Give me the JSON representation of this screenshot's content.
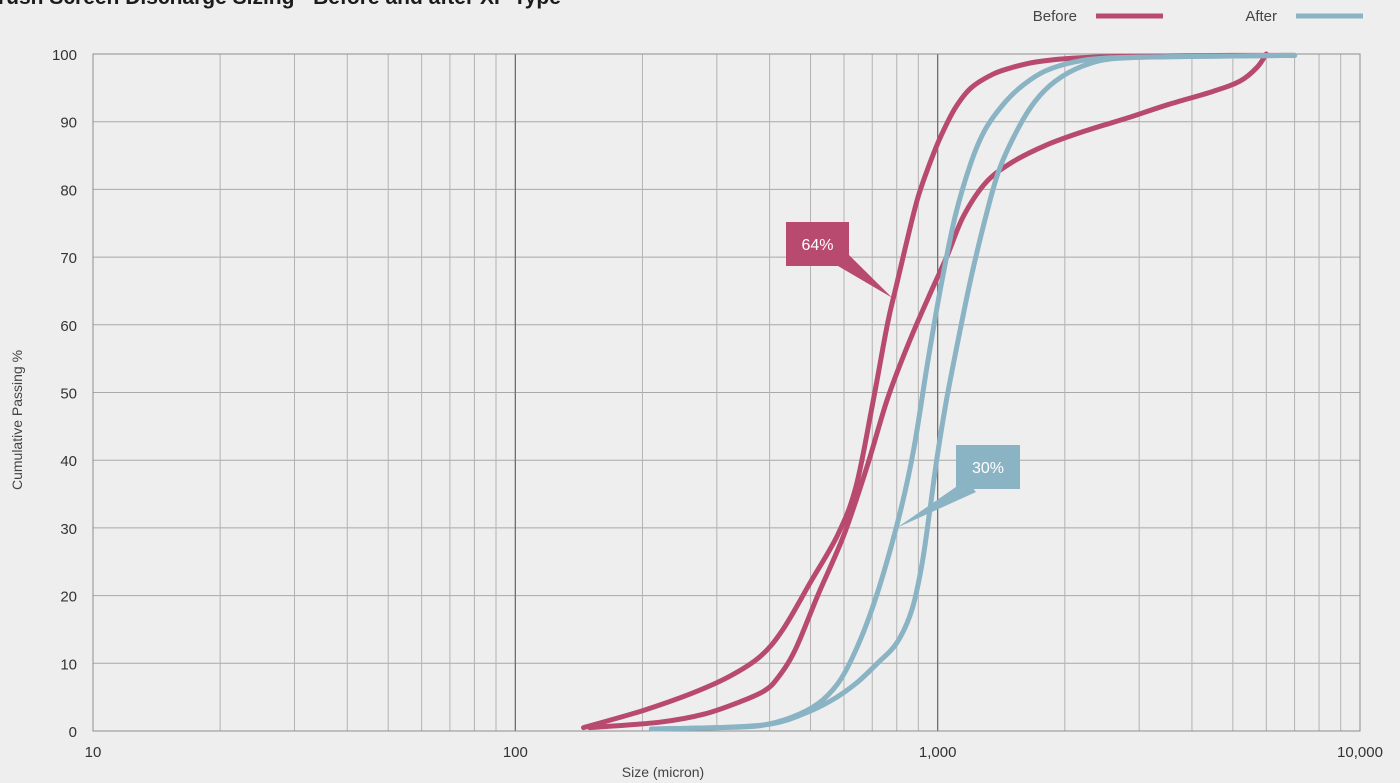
{
  "chart_data": {
    "type": "line",
    "title": "rush Screen Discharge Sizing - Before and after XP Type",
    "xlabel": "Size (micron)",
    "ylabel": "Cumulative Passing %",
    "x_scale": "log",
    "xlim": [
      10,
      10000
    ],
    "ylim": [
      0,
      100
    ],
    "x_tick_labels": [
      {
        "value": 10,
        "label": "10"
      },
      {
        "value": 100,
        "label": "100"
      },
      {
        "value": 1000,
        "label": "1,000"
      },
      {
        "value": 10000,
        "label": "10,000"
      }
    ],
    "y_ticks": [
      0,
      10,
      20,
      30,
      40,
      50,
      60,
      70,
      80,
      90,
      100
    ],
    "grid": true,
    "legend": {
      "placement": "top-right",
      "entries": [
        {
          "label": "Before",
          "color": "#b84a70"
        },
        {
          "label": "After",
          "color": "#8ab3c3"
        }
      ]
    },
    "series": [
      {
        "name": "Before",
        "color": "#b84a70",
        "points": [
          [
            145,
            0.5
          ],
          [
            200,
            3
          ],
          [
            260,
            5.5
          ],
          [
            320,
            8
          ],
          [
            380,
            11
          ],
          [
            430,
            15
          ],
          [
            500,
            22
          ],
          [
            580,
            29
          ],
          [
            640,
            36
          ],
          [
            700,
            48
          ],
          [
            760,
            60
          ],
          [
            800,
            66
          ],
          [
            850,
            73
          ],
          [
            900,
            79
          ],
          [
            960,
            84
          ],
          [
            1020,
            88
          ],
          [
            1100,
            92
          ],
          [
            1200,
            95
          ],
          [
            1350,
            97
          ],
          [
            1500,
            98
          ],
          [
            1700,
            98.8
          ],
          [
            2000,
            99.3
          ],
          [
            2500,
            99.6
          ],
          [
            3500,
            99.7
          ],
          [
            5000,
            99.8
          ],
          [
            7000,
            99.8
          ]
        ]
      },
      {
        "name": "Before",
        "color": "#b84a70",
        "points": [
          [
            150,
            0.5
          ],
          [
            220,
            1.3
          ],
          [
            280,
            2.5
          ],
          [
            340,
            4.3
          ],
          [
            390,
            6
          ],
          [
            420,
            8
          ],
          [
            460,
            12
          ],
          [
            520,
            20
          ],
          [
            600,
            29
          ],
          [
            680,
            39
          ],
          [
            760,
            49
          ],
          [
            850,
            57
          ],
          [
            950,
            64
          ],
          [
            1050,
            70
          ],
          [
            1150,
            76
          ],
          [
            1300,
            81
          ],
          [
            1500,
            84
          ],
          [
            1800,
            86.5
          ],
          [
            2200,
            88.5
          ],
          [
            2800,
            90.5
          ],
          [
            3500,
            92.5
          ],
          [
            4500,
            94.5
          ],
          [
            5200,
            96
          ],
          [
            5700,
            98
          ],
          [
            6000,
            100
          ]
        ]
      },
      {
        "name": "After",
        "color": "#8ab3c3",
        "points": [
          [
            210,
            0.3
          ],
          [
            300,
            0.5
          ],
          [
            380,
            0.8
          ],
          [
            450,
            2
          ],
          [
            520,
            4
          ],
          [
            580,
            7
          ],
          [
            630,
            11
          ],
          [
            690,
            17
          ],
          [
            750,
            24
          ],
          [
            820,
            33
          ],
          [
            880,
            42
          ],
          [
            950,
            55
          ],
          [
            1020,
            66
          ],
          [
            1100,
            76
          ],
          [
            1200,
            84
          ],
          [
            1300,
            89
          ],
          [
            1450,
            93
          ],
          [
            1600,
            95.5
          ],
          [
            1800,
            97.5
          ],
          [
            2100,
            98.8
          ],
          [
            2500,
            99.4
          ],
          [
            3500,
            99.6
          ],
          [
            5000,
            99.7
          ],
          [
            7000,
            99.8
          ]
        ]
      },
      {
        "name": "After",
        "color": "#8ab3c3",
        "points": [
          [
            210,
            0.3
          ],
          [
            300,
            0.5
          ],
          [
            400,
            1
          ],
          [
            480,
            2.5
          ],
          [
            560,
            4.5
          ],
          [
            640,
            7
          ],
          [
            720,
            10
          ],
          [
            800,
            13
          ],
          [
            870,
            18
          ],
          [
            920,
            25
          ],
          [
            960,
            33
          ],
          [
            1000,
            41
          ],
          [
            1050,
            49
          ],
          [
            1120,
            58
          ],
          [
            1200,
            67
          ],
          [
            1300,
            76
          ],
          [
            1400,
            83
          ],
          [
            1550,
            89
          ],
          [
            1700,
            93
          ],
          [
            1900,
            96
          ],
          [
            2200,
            98.2
          ],
          [
            2600,
            99.3
          ],
          [
            3500,
            99.6
          ],
          [
            5000,
            99.7
          ],
          [
            7000,
            99.8
          ]
        ]
      }
    ],
    "annotations": [
      {
        "text": "64%",
        "color": "#b84a70",
        "x": 780,
        "y": 64
      },
      {
        "text": "30%",
        "color": "#8ab3c3",
        "x": 800,
        "y": 30
      }
    ]
  }
}
